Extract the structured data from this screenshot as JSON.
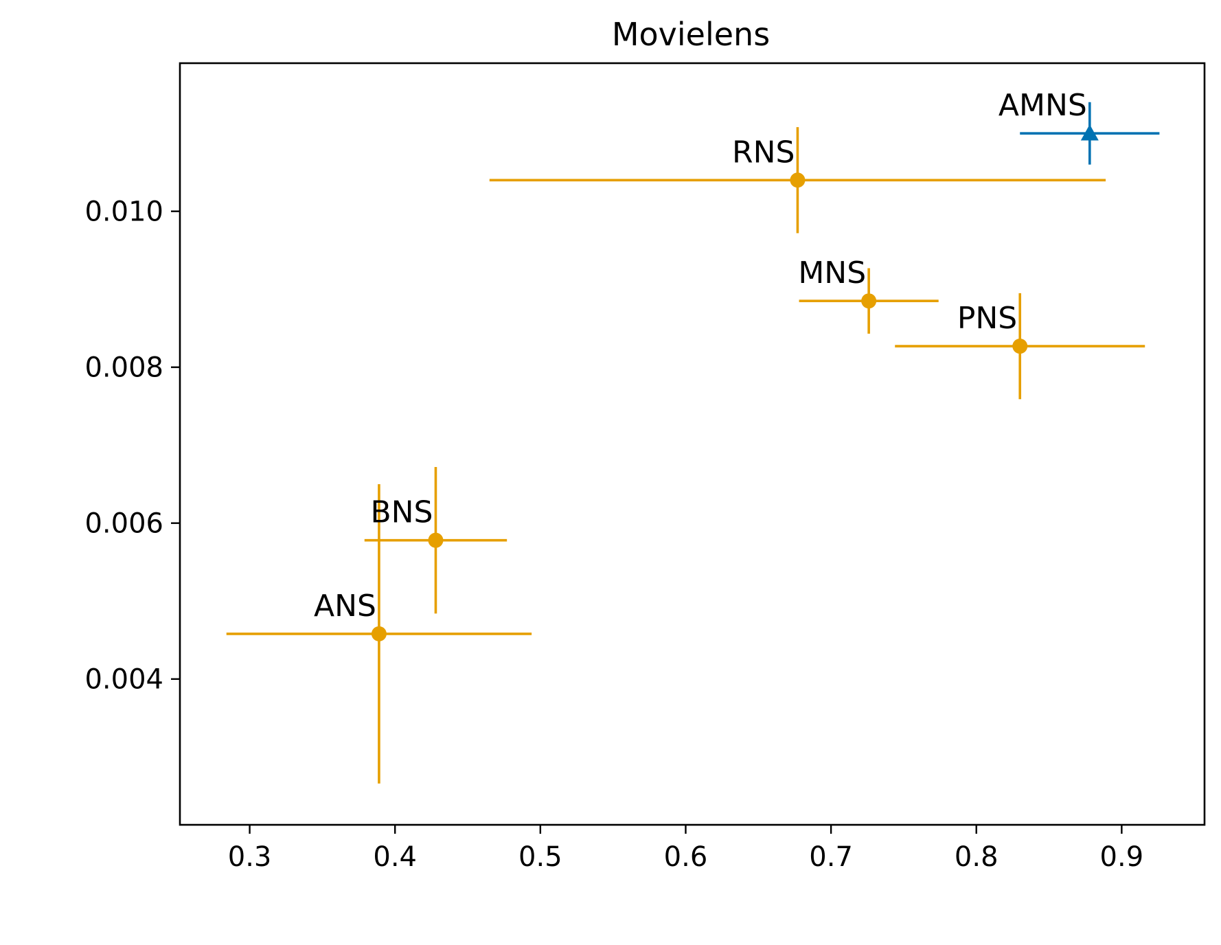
{
  "chart_data": {
    "type": "scatter",
    "title": "Movielens",
    "xlabel": "",
    "ylabel": "",
    "xlim": [
      0.252,
      0.957
    ],
    "ylim": [
      0.00213,
      0.0119
    ],
    "xticks": [
      0.3,
      0.4,
      0.5,
      0.6,
      0.7,
      0.8,
      0.9
    ],
    "xtick_labels": [
      "0.3",
      "0.4",
      "0.5",
      "0.6",
      "0.7",
      "0.8",
      "0.9"
    ],
    "yticks": [
      0.004,
      0.006,
      0.008,
      0.01
    ],
    "ytick_labels": [
      "0.004",
      "0.006",
      "0.008",
      "0.010"
    ],
    "grid": false,
    "legend": "none",
    "points": [
      {
        "label": "AMNS",
        "x": 0.878,
        "y": 0.011,
        "xerr": 0.048,
        "yerr": 0.0004,
        "color": "#0072b2",
        "marker": "triangle"
      },
      {
        "label": "RNS",
        "x": 0.677,
        "y": 0.0104,
        "xerr": 0.212,
        "yerr": 0.00068,
        "color": "#e69f00",
        "marker": "circle"
      },
      {
        "label": "MNS",
        "x": 0.726,
        "y": 0.00885,
        "xerr": 0.048,
        "yerr": 0.00042,
        "color": "#e69f00",
        "marker": "circle"
      },
      {
        "label": "PNS",
        "x": 0.83,
        "y": 0.00827,
        "xerr": 0.086,
        "yerr": 0.00068,
        "color": "#e69f00",
        "marker": "circle"
      },
      {
        "label": "BNS",
        "x": 0.428,
        "y": 0.00578,
        "xerr": 0.049,
        "yerr": 0.00094,
        "color": "#e69f00",
        "marker": "circle"
      },
      {
        "label": "ANS",
        "x": 0.389,
        "y": 0.00458,
        "xerr": 0.105,
        "yerr": 0.00192,
        "color": "#e69f00",
        "marker": "circle"
      }
    ]
  }
}
